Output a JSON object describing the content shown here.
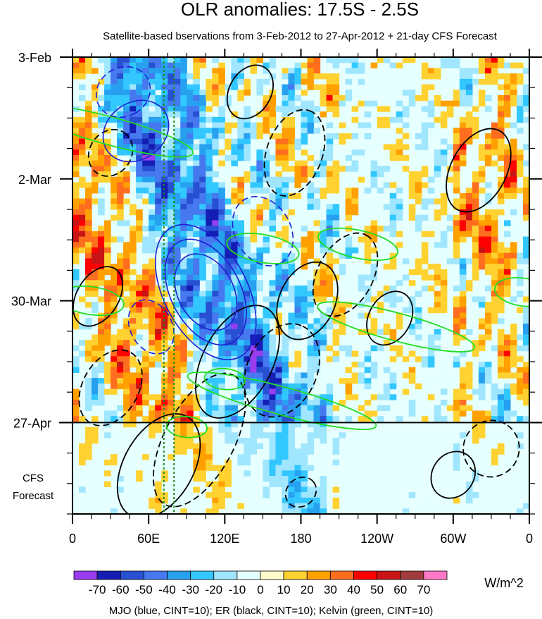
{
  "chart_data": {
    "type": "heatmap",
    "title": "OLR anomalies: 17.5S - 2.5S",
    "subtitle": "Satellite-based bservations from 3-Feb-2012 to 27-Apr-2012 + 21-day CFS Forecast",
    "x_ticks": [
      "0",
      "60E",
      "120E",
      "180",
      "120W",
      "60W",
      "0"
    ],
    "x_tick_degrees": [
      0,
      60,
      120,
      180,
      240,
      300,
      360
    ],
    "x_range_degrees": [
      0,
      360
    ],
    "y_ticks": [
      "3-Feb",
      "2-Mar",
      "30-Mar",
      "27-Apr"
    ],
    "y_tick_days": [
      0,
      28,
      56,
      84
    ],
    "y_range_days": [
      0,
      105
    ],
    "observation_end_day": 84,
    "forecast_label": [
      "CFS",
      "Forecast"
    ],
    "reference_lines_degrees": [
      72,
      80
    ],
    "colorbar": {
      "levels": [
        "-70",
        "-60",
        "-50",
        "-40",
        "-30",
        "-20",
        "-10",
        "0",
        "10",
        "20",
        "30",
        "40",
        "50",
        "60",
        "70"
      ],
      "colors": [
        "#9a3cf0",
        "#141eb4",
        "#2850d2",
        "#4678f0",
        "#28a0f0",
        "#32c8ff",
        "#a0e6ff",
        "#e6ffff",
        "#fffac8",
        "#ffd232",
        "#ffa000",
        "#ff6e1e",
        "#ff0000",
        "#c81414",
        "#a03c3c",
        "#ff78c8"
      ],
      "units": "W/m^2"
    },
    "footer": "MJO (blue, CINT=10); ER (black, CINT=10); Kelvin (green, CINT=10)",
    "contour_colors": {
      "mjo": "#1e1ed2",
      "er": "#000000",
      "kelvin": "#22dd22"
    },
    "mjo_contours": [
      {
        "lon": 105,
        "day": 54,
        "a": 36,
        "b": 6,
        "angle": 62,
        "sign": 1
      },
      {
        "lon": 105,
        "day": 54,
        "a": 28,
        "b": 5,
        "angle": 62,
        "sign": 1
      },
      {
        "lon": 105,
        "day": 54,
        "a": 20,
        "b": 4,
        "angle": 62,
        "sign": 1
      },
      {
        "lon": 50,
        "day": 17,
        "a": 14,
        "b": 5,
        "angle": 55,
        "sign": 1
      },
      {
        "lon": 150,
        "day": 40,
        "a": 18,
        "b": 4,
        "angle": 60,
        "sign": -1
      },
      {
        "lon": 62,
        "day": 62,
        "a": 14,
        "b": 3,
        "angle": 62,
        "sign": -1
      },
      {
        "lon": 40,
        "day": 8,
        "a": 12,
        "b": 4,
        "angle": 60,
        "sign": -1
      }
    ],
    "er_contours": [
      {
        "lon": 320,
        "day": 26,
        "a": 22,
        "b": 4,
        "angle": -62,
        "sign": 1
      },
      {
        "lon": 330,
        "day": 90,
        "a": 14,
        "b": 4,
        "angle": -55,
        "sign": -1
      },
      {
        "lon": 300,
        "day": 96,
        "a": 12,
        "b": 3,
        "angle": -55,
        "sign": 1
      },
      {
        "lon": 250,
        "day": 60,
        "a": 14,
        "b": 3,
        "angle": -60,
        "sign": 1
      },
      {
        "lon": 215,
        "day": 50,
        "a": 22,
        "b": 4,
        "angle": -62,
        "sign": -1
      },
      {
        "lon": 185,
        "day": 56,
        "a": 20,
        "b": 4,
        "angle": -65,
        "sign": 1
      },
      {
        "lon": 165,
        "day": 72,
        "a": 24,
        "b": 5,
        "angle": -65,
        "sign": -1
      },
      {
        "lon": 130,
        "day": 70,
        "a": 30,
        "b": 5,
        "angle": -62,
        "sign": 1
      },
      {
        "lon": 100,
        "day": 88,
        "a": 36,
        "b": 5,
        "angle": -62,
        "sign": -1
      },
      {
        "lon": 68,
        "day": 94,
        "a": 28,
        "b": 5,
        "angle": -60,
        "sign": 1
      },
      {
        "lon": 30,
        "day": 76,
        "a": 20,
        "b": 4,
        "angle": -60,
        "sign": -1
      },
      {
        "lon": 20,
        "day": 55,
        "a": 16,
        "b": 3,
        "angle": -58,
        "sign": 1
      },
      {
        "lon": 175,
        "day": 22,
        "a": 22,
        "b": 4,
        "angle": -70,
        "sign": -1
      },
      {
        "lon": 140,
        "day": 8,
        "a": 14,
        "b": 3,
        "angle": -60,
        "sign": 1
      },
      {
        "lon": 180,
        "day": 100,
        "a": 8,
        "b": 2,
        "angle": -40,
        "sign": -1
      },
      {
        "lon": 30,
        "day": 22,
        "a": 12,
        "b": 3,
        "angle": -55,
        "sign": -1
      }
    ],
    "kelvin_contours": [
      {
        "lon": 30,
        "day": 17,
        "a": 42,
        "b": 2,
        "angle": 15,
        "sign": 1
      },
      {
        "lon": 165,
        "day": 79,
        "a": 48,
        "b": 2,
        "angle": 15,
        "sign": 1
      },
      {
        "lon": 255,
        "day": 62,
        "a": 40,
        "b": 2,
        "angle": 15,
        "sign": 1
      },
      {
        "lon": 225,
        "day": 43,
        "a": 20,
        "b": 2,
        "angle": 12,
        "sign": 1
      },
      {
        "lon": 150,
        "day": 44,
        "a": 18,
        "b": 2,
        "angle": 10,
        "sign": 1
      },
      {
        "lon": 355,
        "day": 54,
        "a": 14,
        "b": 2,
        "angle": 8,
        "sign": 1
      },
      {
        "lon": 15,
        "day": 56,
        "a": 16,
        "b": 2,
        "angle": 8,
        "sign": 1
      },
      {
        "lon": 90,
        "day": 85,
        "a": 10,
        "b": 1.5,
        "angle": 5,
        "sign": 1
      },
      {
        "lon": 120,
        "day": 74,
        "a": 10,
        "b": 1.5,
        "angle": 5,
        "sign": 1
      }
    ]
  }
}
